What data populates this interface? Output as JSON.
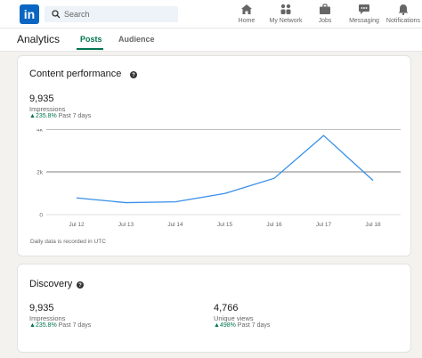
{
  "nav": {
    "logo_text": "in",
    "search_placeholder": "Search",
    "items": [
      {
        "label": "Home",
        "icon": "home-icon"
      },
      {
        "label": "My Network",
        "icon": "network-icon"
      },
      {
        "label": "Jobs",
        "icon": "briefcase-icon"
      },
      {
        "label": "Messaging",
        "icon": "messaging-icon"
      },
      {
        "label": "Notifications",
        "icon": "bell-icon"
      }
    ]
  },
  "header": {
    "title": "Analytics",
    "tabs": [
      {
        "label": "Posts",
        "active": true
      },
      {
        "label": "Audience",
        "active": false
      }
    ]
  },
  "content_performance": {
    "title": "Content performance",
    "impressions_value": "9,935",
    "impressions_label": "Impressions",
    "delta_value": "235.8%",
    "delta_period": "Past 7 days",
    "footnote": "Daily data is recorded in UTC"
  },
  "chart_data": {
    "type": "line",
    "x": [
      "Jul 12",
      "Jul 13",
      "Jul 14",
      "Jul 15",
      "Jul 16",
      "Jul 17",
      "Jul 18"
    ],
    "y_ticks": [
      "4k",
      "2k",
      "0"
    ],
    "ylim": [
      0,
      4000
    ],
    "series": [
      {
        "values": [
          780,
          560,
          600,
          990,
          1700,
          3700,
          1600
        ],
        "color": "#378fe9"
      }
    ],
    "grid": true
  },
  "discovery": {
    "title": "Discovery",
    "impressions_value": "9,935",
    "impressions_label": "Impressions",
    "impressions_delta": "235.8%",
    "impressions_period": "Past 7 days",
    "views_value": "4,766",
    "views_label": "Unique views",
    "views_delta": "498%",
    "views_period": "Past 7 days"
  },
  "colors": {
    "brand": "#0a66c2",
    "accent_green": "#01754f",
    "line": "#378fe9"
  }
}
